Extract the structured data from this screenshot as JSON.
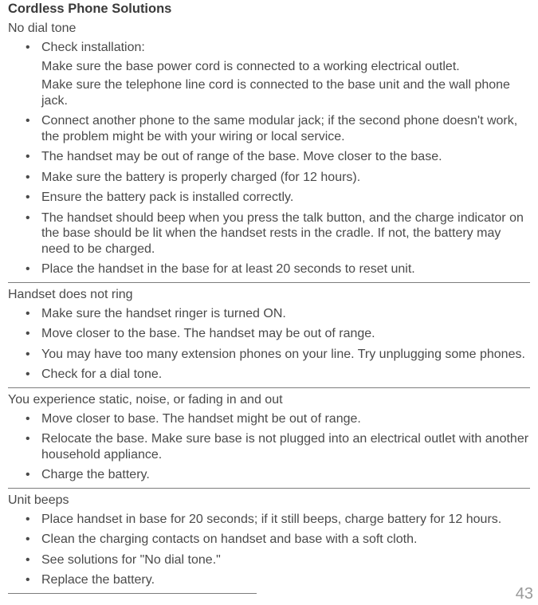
{
  "title": "Cordless Phone Solutions",
  "pageNumber": "43",
  "sections": [
    {
      "heading": "No dial tone",
      "items": [
        {
          "text": "Check installation:",
          "sublines": [
            "Make sure the base power cord is connected to a working electrical outlet.",
            "Make sure the telephone line cord is connected to the base unit and the wall phone jack."
          ]
        },
        {
          "text": "Connect another phone to the same modular jack; if the second phone doesn't work, the problem might be with your wiring or local service."
        },
        {
          "text": "The handset may be out of range of the base. Move closer to the base."
        },
        {
          "text": "Make sure the battery is properly charged (for 12 hours)."
        },
        {
          "text": "Ensure the battery pack is installed correctly."
        },
        {
          "text": "The handset should beep when you press the talk button, and the charge indicator on the base should be lit when the handset rests in the cradle. If not, the battery may need to be charged."
        },
        {
          "text": "Place the handset in the base for at least 20 seconds to reset unit."
        }
      ],
      "fullDivider": true
    },
    {
      "heading": "Handset does not ring",
      "items": [
        {
          "text": "Make sure the handset ringer is turned ON."
        },
        {
          "text": "Move closer to the base. The handset may be out of range."
        },
        {
          "text": "You may have too many extension phones on your line. Try unplugging some phones."
        },
        {
          "text": "Check for a dial tone."
        }
      ],
      "fullDivider": true
    },
    {
      "heading": "You experience static, noise, or fading in and out",
      "items": [
        {
          "text": "Move closer to base. The handset might be out of range."
        },
        {
          "text": "Relocate the base. Make sure base is not plugged into an electrical outlet with another household appliance."
        },
        {
          "text": "Charge the battery."
        }
      ],
      "fullDivider": true
    },
    {
      "heading": "Unit beeps",
      "items": [
        {
          "text": "Place handset in base for 20 seconds; if it still beeps, charge battery for 12 hours."
        },
        {
          "text": "Clean the charging contacts on handset and base with a soft cloth."
        },
        {
          "text": "See solutions for \"No dial tone.\""
        },
        {
          "text": "Replace the battery."
        }
      ],
      "fullDivider": false
    }
  ]
}
